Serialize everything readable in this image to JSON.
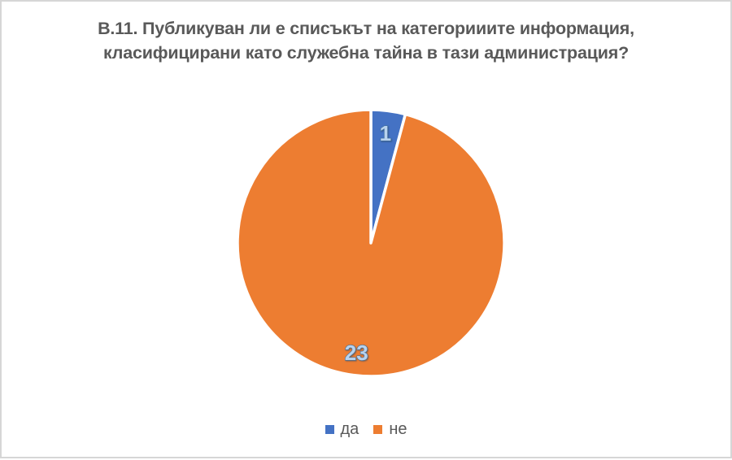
{
  "window": {
    "background": "#ffffff",
    "border_color": "#d6d6d6"
  },
  "chart_data": {
    "type": "pie",
    "title": "В.11. Публикуван ли е списъкът на категорииите информация, класифицирани като служебна тайна в тази администрация?",
    "title_lines": [
      "В.11. Публикуван ли е списъкът на категорииите информация,",
      "класифицирани като служебна тайна в тази администрация?"
    ],
    "title_color": "#595959",
    "labels": [
      "да",
      "не"
    ],
    "values": [
      1,
      23
    ],
    "data_labels": [
      "1",
      "23"
    ],
    "total": 24,
    "colors": [
      "#4472c4",
      "#ed7d31"
    ],
    "slice_border_color": "#ffffff",
    "data_label_fill": "#b9d3ee",
    "data_label_outline": "#41719c",
    "legend_position": "bottom",
    "legend_text_color": "#595959"
  }
}
